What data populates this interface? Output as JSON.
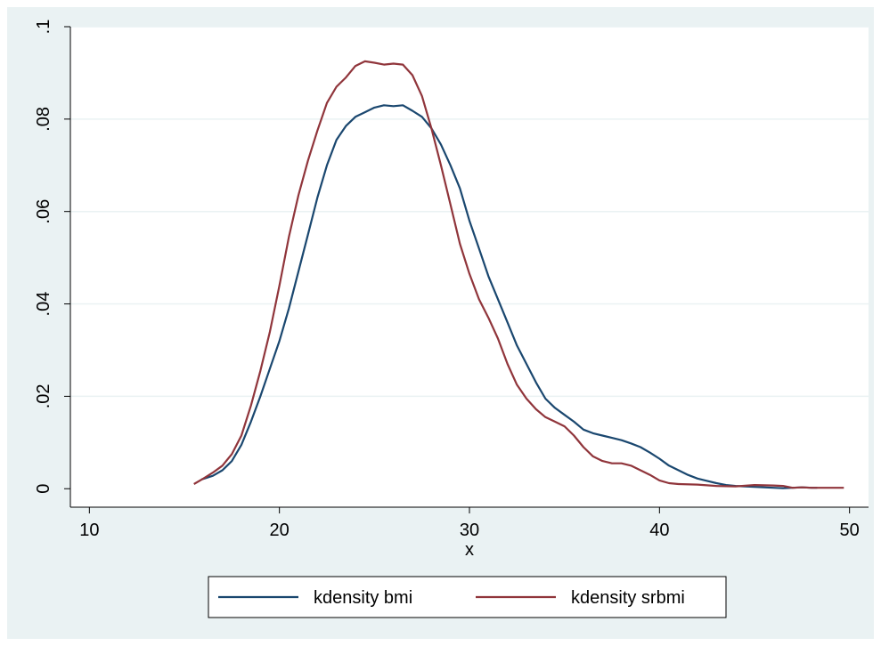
{
  "chart_data": {
    "type": "line",
    "title": "",
    "xlabel": "x",
    "ylabel": "",
    "xlim": [
      9,
      51
    ],
    "ylim": [
      -0.004,
      0.1
    ],
    "x_ticks": [
      10,
      20,
      30,
      40,
      50
    ],
    "x_tick_labels": [
      "10",
      "20",
      "30",
      "40",
      "50"
    ],
    "y_ticks": [
      0,
      0.02,
      0.04,
      0.06,
      0.08,
      0.1
    ],
    "y_tick_labels": [
      "0",
      ".02",
      ".04",
      ".06",
      ".08",
      ".1"
    ],
    "grid": true,
    "legend_position": "bottom",
    "colors": {
      "plot_bg": "#ffffff",
      "outer_bg": "#eaf2f3",
      "grid": "#eaf2f3"
    },
    "series": [
      {
        "name": "kdensity bmi",
        "color": "#1a476f",
        "points": [
          [
            15.9,
            0.002
          ],
          [
            16.5,
            0.0028
          ],
          [
            17,
            0.004
          ],
          [
            17.5,
            0.006
          ],
          [
            18,
            0.0095
          ],
          [
            18.5,
            0.0145
          ],
          [
            19,
            0.02
          ],
          [
            19.5,
            0.026
          ],
          [
            20,
            0.032
          ],
          [
            20.5,
            0.039
          ],
          [
            21,
            0.047
          ],
          [
            21.5,
            0.055
          ],
          [
            22,
            0.063
          ],
          [
            22.5,
            0.07
          ],
          [
            23,
            0.0755
          ],
          [
            23.5,
            0.0785
          ],
          [
            24,
            0.0805
          ],
          [
            24.5,
            0.0815
          ],
          [
            25,
            0.0825
          ],
          [
            25.5,
            0.083
          ],
          [
            26,
            0.0828
          ],
          [
            26.5,
            0.083
          ],
          [
            27,
            0.0818
          ],
          [
            27.5,
            0.0805
          ],
          [
            28,
            0.078
          ],
          [
            28.5,
            0.0745
          ],
          [
            29,
            0.07
          ],
          [
            29.5,
            0.065
          ],
          [
            30,
            0.058
          ],
          [
            30.5,
            0.052
          ],
          [
            31,
            0.046
          ],
          [
            31.5,
            0.041
          ],
          [
            32,
            0.036
          ],
          [
            32.5,
            0.031
          ],
          [
            33,
            0.027
          ],
          [
            33.5,
            0.023
          ],
          [
            34,
            0.0195
          ],
          [
            34.5,
            0.0175
          ],
          [
            35,
            0.016
          ],
          [
            35.5,
            0.0145
          ],
          [
            36,
            0.0128
          ],
          [
            36.5,
            0.012
          ],
          [
            37,
            0.0115
          ],
          [
            37.5,
            0.011
          ],
          [
            38,
            0.0105
          ],
          [
            38.5,
            0.0098
          ],
          [
            39,
            0.009
          ],
          [
            39.5,
            0.0078
          ],
          [
            40,
            0.0065
          ],
          [
            40.5,
            0.005
          ],
          [
            41,
            0.004
          ],
          [
            41.5,
            0.003
          ],
          [
            42,
            0.0022
          ],
          [
            42.5,
            0.0017
          ],
          [
            43,
            0.0012
          ],
          [
            43.5,
            0.0008
          ],
          [
            44,
            0.0006
          ],
          [
            45,
            0.0004
          ],
          [
            46,
            0.0002
          ],
          [
            46.5,
            0.0001
          ],
          [
            47,
            0.0002
          ],
          [
            47.5,
            0.0003
          ],
          [
            48,
            0.0002
          ],
          [
            48.3,
            0.0002
          ]
        ]
      },
      {
        "name": "kdensity srbmi",
        "color": "#90353b",
        "points": [
          [
            15.5,
            0.001
          ],
          [
            16,
            0.0022
          ],
          [
            16.5,
            0.0035
          ],
          [
            17,
            0.005
          ],
          [
            17.5,
            0.0075
          ],
          [
            18,
            0.0115
          ],
          [
            18.5,
            0.018
          ],
          [
            19,
            0.0255
          ],
          [
            19.5,
            0.034
          ],
          [
            20,
            0.044
          ],
          [
            20.5,
            0.0545
          ],
          [
            21,
            0.0635
          ],
          [
            21.5,
            0.071
          ],
          [
            22,
            0.0775
          ],
          [
            22.5,
            0.0835
          ],
          [
            23,
            0.087
          ],
          [
            23.5,
            0.089
          ],
          [
            24,
            0.0915
          ],
          [
            24.5,
            0.0925
          ],
          [
            25,
            0.0922
          ],
          [
            25.5,
            0.0918
          ],
          [
            26,
            0.092
          ],
          [
            26.5,
            0.0918
          ],
          [
            27,
            0.0895
          ],
          [
            27.5,
            0.085
          ],
          [
            28,
            0.078
          ],
          [
            28.5,
            0.07
          ],
          [
            29,
            0.0615
          ],
          [
            29.5,
            0.053
          ],
          [
            30,
            0.0465
          ],
          [
            30.5,
            0.041
          ],
          [
            31,
            0.037
          ],
          [
            31.5,
            0.0325
          ],
          [
            32,
            0.027
          ],
          [
            32.5,
            0.0225
          ],
          [
            33,
            0.0195
          ],
          [
            33.5,
            0.0172
          ],
          [
            34,
            0.0155
          ],
          [
            34.5,
            0.0145
          ],
          [
            35,
            0.0135
          ],
          [
            35.5,
            0.0115
          ],
          [
            36,
            0.009
          ],
          [
            36.5,
            0.007
          ],
          [
            37,
            0.006
          ],
          [
            37.5,
            0.0055
          ],
          [
            38,
            0.0055
          ],
          [
            38.5,
            0.005
          ],
          [
            39,
            0.004
          ],
          [
            39.5,
            0.003
          ],
          [
            40,
            0.0018
          ],
          [
            40.5,
            0.0012
          ],
          [
            41,
            0.001
          ],
          [
            42,
            0.0009
          ],
          [
            43,
            0.0006
          ],
          [
            44,
            0.0005
          ],
          [
            45,
            0.0008
          ],
          [
            46,
            0.0007
          ],
          [
            46.5,
            0.0006
          ],
          [
            47,
            0.0002
          ],
          [
            47.5,
            0.0003
          ],
          [
            48,
            0.0002
          ],
          [
            48.5,
            0.0002
          ],
          [
            49,
            0.0002
          ],
          [
            49.7,
            0.0002
          ]
        ]
      }
    ]
  }
}
